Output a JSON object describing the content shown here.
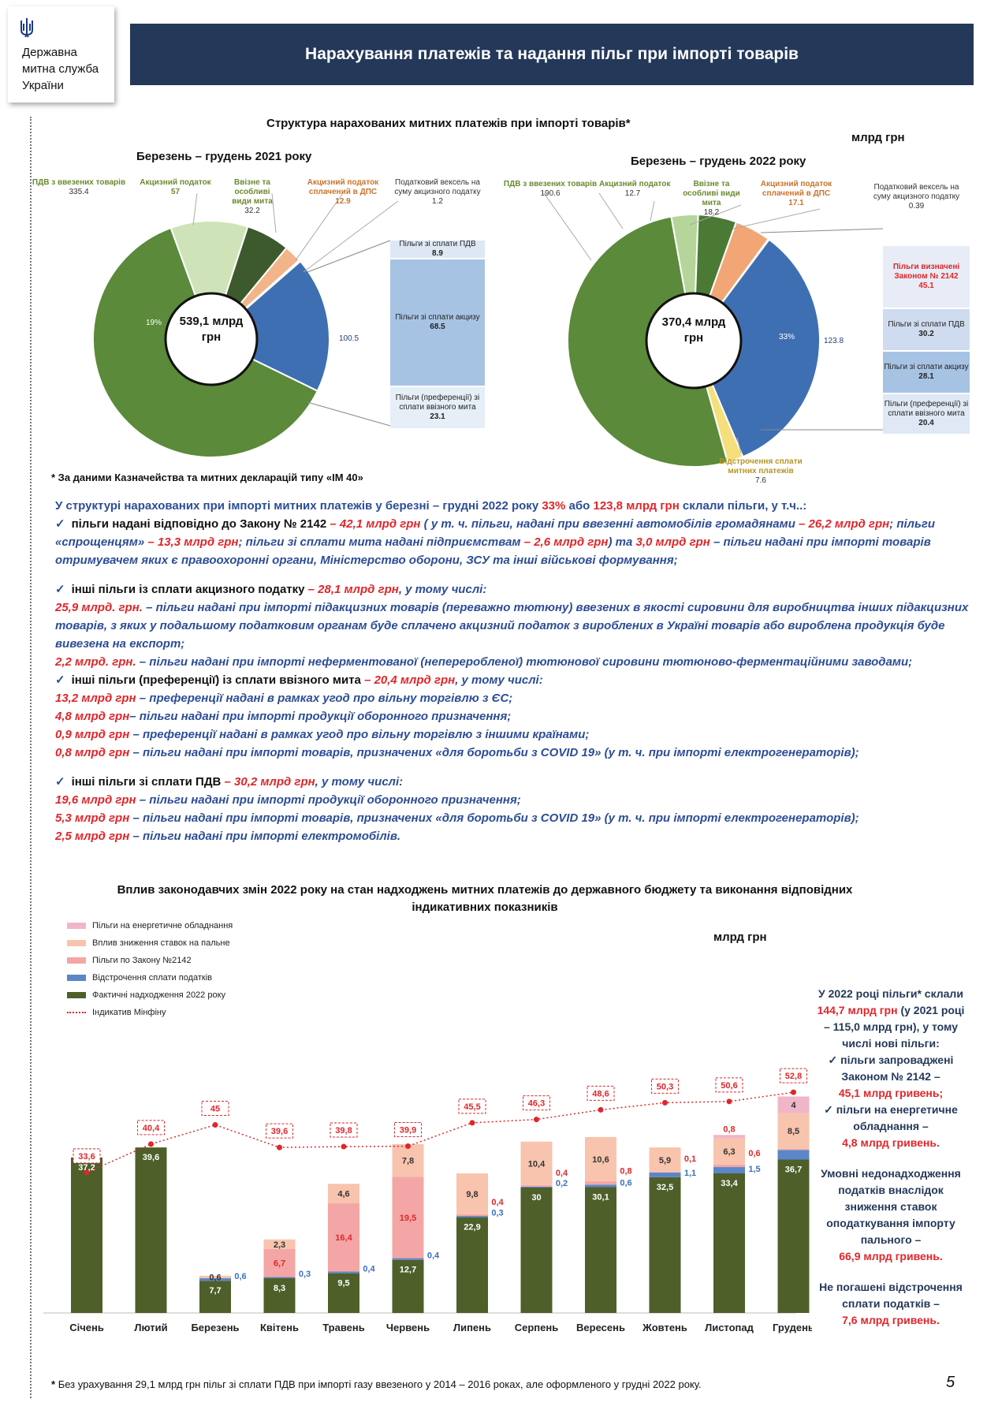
{
  "header": {
    "org_name": "Державна\nмитна служба\nУкраїни",
    "title": "Нарахування платежів та надання пільг  при імпорті товарів"
  },
  "section1": {
    "title": "Структура нарахованих митних платежів при імпорті товарів*",
    "unit": "млрд грн",
    "footnote": "* За даними Казначейства та митних декларацій типу «ІМ 40»"
  },
  "chart_data": [
    {
      "type": "pie",
      "title": "Березень – грудень 2021 року",
      "center_label": "539,1 млрд грн",
      "slices": [
        {
          "label": "ПДВ з ввезених товарів",
          "value": 335.4,
          "color": "#5a8a3a"
        },
        {
          "label": "Акцизний податок",
          "value": 57.0,
          "color": "#cfe3b8"
        },
        {
          "label": "Ввізне та особливі види мита",
          "value": 32.2,
          "color": "#3d5a2c"
        },
        {
          "label": "Акцизний податок сплачений в ДПС",
          "value": 12.9,
          "color": "#f2b58a"
        },
        {
          "label": "Податковий вексель на суму акцизного податку",
          "value": 1.2,
          "color": "#ffffff"
        },
        {
          "label": "Пільги",
          "value": 100.5,
          "color": "#3f6fb3",
          "percent_label": "19%"
        }
      ],
      "breakdown": [
        {
          "label": "Пільги зі сплати ПДВ",
          "value": 8.9
        },
        {
          "label": "Пільги зі сплати акцизу",
          "value": 68.5
        },
        {
          "label": "Пільги (преференції) зі сплати ввізного мита",
          "value": 23.1
        }
      ]
    },
    {
      "type": "pie",
      "title": "Березень – грудень 2022  року",
      "center_label": "370,4 млрд грн",
      "slices": [
        {
          "label": "ПДВ з ввезених товарів",
          "value": 190.6,
          "color": "#5a8a3a"
        },
        {
          "label": "Акцизний податок",
          "value": 12.7,
          "color": "#b6d59a"
        },
        {
          "label": "Ввізне та особливі види мита",
          "value": 18.2,
          "color": "#4b7a34"
        },
        {
          "label": "Акцизний податок сплачений в ДПС",
          "value": 17.1,
          "color": "#f2a676"
        },
        {
          "label": "Податковий вексель на суму акцизного податку",
          "value": 0.39,
          "color": "#ffffff"
        },
        {
          "label": "Пільги",
          "value": 123.8,
          "color": "#3f6fb3",
          "percent_label": "33%"
        },
        {
          "label": "Відстрочення сплати митних платежів",
          "value": 7.6,
          "color": "#f4df7a"
        }
      ],
      "breakdown": [
        {
          "label": "Пільги визначені Законом № 2142",
          "value": 45.1
        },
        {
          "label": "Пільги зі сплати ПДВ",
          "value": 30.2
        },
        {
          "label": "Пільги зі сплати акцизу",
          "value": 28.1
        },
        {
          "label": "Пільги (преференції) зі сплати ввізного мита",
          "value": 20.4
        }
      ]
    },
    {
      "type": "bar",
      "title": "Вплив законодавчих змін 2022 року на стан надходжень митних платежів до державного бюджету та виконання відповідних індикативних показників",
      "unit": "млрд грн",
      "categories": [
        "Січень",
        "Лютий",
        "Березень",
        "Квітень",
        "Травень",
        "Червень",
        "Липень",
        "Серпень",
        "Вересень",
        "Жовтень",
        "Листопад",
        "Грудень"
      ],
      "series": [
        {
          "name": "Фактичні надходження 2022 року",
          "values": [
            37.2,
            39.6,
            7.7,
            8.3,
            9.5,
            12.7,
            22.9,
            30.0,
            30.1,
            32.5,
            33.4,
            36.7
          ],
          "color": "#4e5f2a"
        },
        {
          "name": "Відстрочення сплати податків",
          "values": [
            0,
            0,
            0.6,
            0.3,
            0.4,
            0.4,
            0.3,
            0.2,
            0.6,
            1.1,
            1.5,
            2.3
          ],
          "color": "#5b86c8"
        },
        {
          "name": "Пільги по Закону №2142",
          "values": [
            0,
            0,
            0,
            6.7,
            16.4,
            19.5,
            0.4,
            0.4,
            0.8,
            0.1,
            0.6,
            0.3
          ],
          "color": "#f4a6a6"
        },
        {
          "name": "Вплив зниження ставок на пальне",
          "values": [
            0,
            0,
            0.6,
            2.3,
            4.6,
            7.8,
            9.8,
            10.4,
            10.6,
            5.9,
            6.3,
            8.5
          ],
          "color": "#f8c4ae"
        },
        {
          "name": "Пільги на енергетичне обладнання",
          "values": [
            0,
            0,
            0,
            0,
            0,
            0,
            0,
            0,
            0,
            0,
            0.8,
            4.0
          ],
          "color": "#f0b6c8"
        },
        {
          "name": "Індикатив Мінфіну",
          "values": [
            33.6,
            40.4,
            45.0,
            39.6,
            39.8,
            39.9,
            45.5,
            46.3,
            48.6,
            50.3,
            50.6,
            52.8
          ],
          "color": "#e0262a",
          "type": "line"
        }
      ]
    }
  ],
  "text": {
    "intro_a": "У структурі нарахованих при імпорті митних платежів у березні – грудні 2022 року  ",
    "intro_pct": "33%",
    "intro_b": " або ",
    "intro_val": "123,8 млрд грн",
    "intro_c": " склали пільги, у т.ч..:",
    "p1_head": "пільги надані відповідно до Закону № 2142 ",
    "p1_val": "– 42,1 млрд грн",
    "p1_a": " ( у т. ч. пільги, надані при ввезенні автомобілів громадянами ",
    "p1_v2": "– 26,2 млрд грн",
    "p1_b": "; пільги «спрощенцям» ",
    "p1_v3": "– 13,3 млрд грн",
    "p1_c": "; пільги зі сплати мита надані підприємствам ",
    "p1_v4": "– 2,6 млрд грн",
    "p1_d": ") та ",
    "p1_v5": "3,0 млрд грн",
    "p1_e": " – пільги надані при імпорті товарів отримувачем яких є правоохоронні органи, Міністерство оборони, ЗСУ та інші військові формування;",
    "p2_head": "інші пільги із сплати акцизного податку ",
    "p2_val": "– 28,1 млрд грн",
    "p2_tail": ", у тому числі:",
    "p2_l1v": "25,9 млрд. грн.",
    "p2_l1": " – пільги надані при імпорті підакцизних товарів (переважно тютюну) ввезених в якості сировини для виробництва інших підакцизних  товарів, з яких у подальшому податковим органам буде сплачено акцизний податок з вироблених в Україні товарів або вироблена продукція буде вивезена на експорт;",
    "p2_l2v": "2,2  млрд. грн.",
    "p2_l2": " –  пільги надані при імпорті неферментованої (непереробленої) тютюнової сировини тютюново-ферментаційними заводами;",
    "p3_head": "інші пільги (преференції) із сплати ввізного мита ",
    "p3_val": "– 20,4 млрд грн",
    "p3_tail": ", у тому числі:",
    "p3_l1v": "13,2 млрд грн",
    "p3_l1": " – преференції надані в рамках угод про вільну торгівлю з ЄС;",
    "p3_l2v": "4,8 млрд грн",
    "p3_l2": "– пільги надані при імпорті продукції оборонного призначення;",
    "p3_l3v": "0,9 млрд грн",
    "p3_l3": " – преференції надані в рамках угод про вільну торгівлю з іншими країнами;",
    "p3_l4v": "0,8 млрд грн",
    "p3_l4": " – пільги надані при імпорті товарів, призначених «для боротьби з COVID 19» (у т. ч. при імпорті електрогенераторів);",
    "p4_head": "інші пільги зі сплати ПДВ ",
    "p4_val": "– 30,2 млрд грн",
    "p4_tail": ", у тому числі:",
    "p4_l1v": "19,6 млрд грн",
    "p4_l1": " – пільги надані при імпорті продукції оборонного призначення;",
    "p4_l2v": "5,3 млрд грн",
    "p4_l2": " – пільги надані при імпорті товарів, призначених «для боротьби з COVID 19» (у т. ч. при імпорті електрогенераторів);",
    "p4_l3v": "2,5 млрд грн",
    "p4_l3": " – пільги надані при імпорті електромобілів."
  },
  "section2": {
    "title": "Вплив законодавчих змін 2022 року на стан надходжень митних платежів до державного бюджету та виконання відповідних індикативних показників",
    "unit": "млрд грн"
  },
  "right_note": {
    "a1": "У 2022 році пільги* склали ",
    "a2": "144,7 млрд грн",
    "a3": " (у 2021 році – 115,0 млрд грн), у тому числі нові пільги:",
    "b1": "пільги запроваджені Законом № 2142 –",
    "b2": "45,1 млрд гривень;",
    "c1": "пільги на енергетичне обладнання –",
    "c2": "4,8 млрд гривень.",
    "d1": "Умовні недонадходження податків внаслідок зниження ставок оподаткування імпорту пального –",
    "d2": "66,9 млрд гривень.",
    "e1": "Не погашені відстрочення сплати податків –",
    "e2": "7,6 млрд гривень."
  },
  "footer": {
    "note": "Без  урахування 29,1 млрд грн пільг зі сплати ПДВ при імпорті газу ввезеного у 2014 – 2016  роках, але оформленого у грудні 2022 року.",
    "star": "*",
    "page": "5"
  }
}
